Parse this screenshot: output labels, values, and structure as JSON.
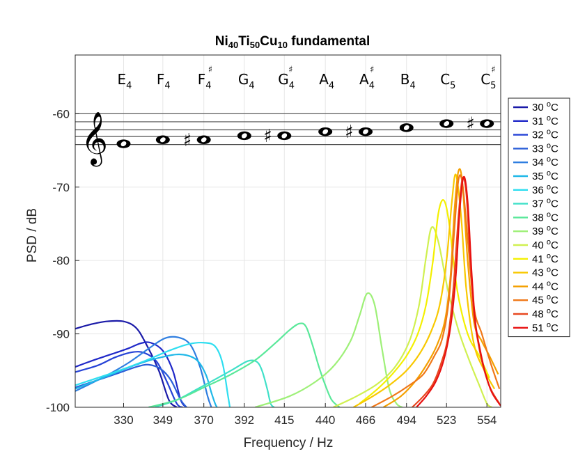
{
  "colors": {
    "grid": "#e6e6e6",
    "axis": "#262626",
    "staff": "#4d4d4d",
    "background": "#ffffff"
  },
  "glyphs": {
    "treble_clef": "𝄞",
    "sharp": "♯",
    "whole_note": "𝅝"
  },
  "chart_data": {
    "type": "line",
    "title": {
      "parts": [
        {
          "text": "Ni",
          "sub": false
        },
        {
          "text": "40",
          "sub": true
        },
        {
          "text": "Ti",
          "sub": false
        },
        {
          "text": "50",
          "sub": true
        },
        {
          "text": "Cu",
          "sub": false
        },
        {
          "text": "10",
          "sub": true
        },
        {
          "text": " fundamental",
          "sub": false
        }
      ]
    },
    "xlabel": "Frequency / Hz",
    "ylabel": "PSD / dB",
    "x_scale": "log",
    "xlim": [
      308,
      565
    ],
    "ylim": [
      -100,
      -52
    ],
    "xticks": [
      330,
      349,
      370,
      392,
      415,
      440,
      466,
      494,
      523,
      554
    ],
    "xtick_labels": [
      "330",
      "349",
      "370",
      "392",
      "415",
      "440",
      "466",
      "494",
      "523",
      "554"
    ],
    "yticks": [
      -100,
      -90,
      -80,
      -70,
      -60
    ],
    "ytick_labels": [
      "-100",
      "-90",
      "-80",
      "-70",
      "-60"
    ],
    "grid": true,
    "legend_position": "outside-right",
    "notes": [
      {
        "name": "E",
        "octave": "4",
        "sharp": false,
        "freq": 330,
        "staff_y": -64.1
      },
      {
        "name": "F",
        "octave": "4",
        "sharp": false,
        "freq": 349,
        "staff_y": -63.55
      },
      {
        "name": "F",
        "octave": "4",
        "sharp": true,
        "freq": 370,
        "staff_y": -63.55
      },
      {
        "name": "G",
        "octave": "4",
        "sharp": false,
        "freq": 392,
        "staff_y": -63.0
      },
      {
        "name": "G",
        "octave": "4",
        "sharp": true,
        "freq": 415,
        "staff_y": -63.0
      },
      {
        "name": "A",
        "octave": "4",
        "sharp": false,
        "freq": 440,
        "staff_y": -62.45
      },
      {
        "name": "A",
        "octave": "4",
        "sharp": true,
        "freq": 466,
        "staff_y": -62.45
      },
      {
        "name": "B",
        "octave": "4",
        "sharp": false,
        "freq": 494,
        "staff_y": -61.9
      },
      {
        "name": "C",
        "octave": "5",
        "sharp": false,
        "freq": 523,
        "staff_y": -61.35
      },
      {
        "name": "C",
        "octave": "5",
        "sharp": true,
        "freq": 554,
        "staff_y": -61.35
      }
    ],
    "staff_lines": [
      -60.0,
      -61.1,
      -62.2,
      -63.1,
      -64.2
    ],
    "series": [
      {
        "name": "30 °C",
        "label": "30 ",
        "color": "#1a1aa8",
        "x": [
          308,
          315,
          322,
          330,
          336,
          341,
          347,
          352,
          356
        ],
        "y": [
          -89.3,
          -88.7,
          -88.3,
          -88.3,
          -89.2,
          -91.5,
          -95.0,
          -99.0,
          -100
        ]
      },
      {
        "name": "31 °C",
        "label": "31 ",
        "color": "#1f28c8",
        "x": [
          308,
          316,
          324,
          332,
          338,
          343,
          349,
          354,
          358,
          361
        ],
        "y": [
          -94.5,
          -93.6,
          -92.8,
          -92.0,
          -91.3,
          -91.2,
          -92.3,
          -95.0,
          -99.0,
          -100
        ]
      },
      {
        "name": "32 °C",
        "label": "32 ",
        "color": "#2441d6",
        "x": [
          308,
          318,
          326,
          334,
          340,
          346,
          351,
          356,
          359
        ],
        "y": [
          -95.2,
          -94.3,
          -93.2,
          -92.5,
          -92.6,
          -93.8,
          -96.5,
          -99.5,
          -100
        ]
      },
      {
        "name": "33 °C",
        "label": "33 ",
        "color": "#2a5ed8",
        "x": [
          308,
          318,
          328,
          336,
          342,
          348,
          353,
          358,
          361
        ],
        "y": [
          -97.3,
          -96.3,
          -95.3,
          -94.5,
          -94.2,
          -94.8,
          -96.3,
          -99.0,
          -100
        ]
      },
      {
        "name": "34 °C",
        "label": "34 ",
        "color": "#2f7ee0",
        "x": [
          308,
          320,
          332,
          342,
          350,
          357,
          363,
          368,
          372,
          374
        ],
        "y": [
          -97.8,
          -96.0,
          -94.0,
          -92.0,
          -90.6,
          -90.5,
          -91.5,
          -94.5,
          -98.5,
          -100
        ]
      },
      {
        "name": "35 °C",
        "label": "35 ",
        "color": "#1fb8e8",
        "x": [
          308,
          322,
          336,
          348,
          358,
          366,
          371,
          374,
          376,
          377
        ],
        "y": [
          -97.5,
          -95.8,
          -94.2,
          -93.2,
          -92.8,
          -93.5,
          -95.5,
          -98.0,
          -99.5,
          -100
        ]
      },
      {
        "name": "36 °C",
        "label": "36 ",
        "color": "#2edef0",
        "x": [
          308,
          325,
          340,
          352,
          362,
          370,
          376,
          380,
          383,
          384
        ],
        "y": [
          -97.0,
          -95.3,
          -93.7,
          -92.3,
          -91.4,
          -91.2,
          -91.7,
          -94.0,
          -98.5,
          -100
        ]
      },
      {
        "name": "37 °C",
        "label": "37 ",
        "color": "#3fe0c8",
        "x": [
          345,
          356,
          366,
          376,
          386,
          394,
          399,
          402,
          405,
          407,
          409
        ],
        "y": [
          -100,
          -99.0,
          -97.6,
          -96.2,
          -94.8,
          -93.7,
          -93.8,
          -95.0,
          -97.5,
          -99.5,
          -100
        ]
      },
      {
        "name": "38 °C",
        "label": "38 ",
        "color": "#5ae89a",
        "x": [
          342,
          356,
          370,
          384,
          398,
          410,
          418,
          424,
          428,
          432,
          436,
          440,
          444,
          449
        ],
        "y": [
          -100,
          -99.0,
          -97.3,
          -95.6,
          -93.6,
          -91.2,
          -89.5,
          -88.6,
          -89.0,
          -91.5,
          -94.5,
          -97.0,
          -99.0,
          -100
        ]
      },
      {
        "name": "39 °C",
        "label": "39 ",
        "color": "#9ef078",
        "x": [
          398,
          418,
          434,
          446,
          456,
          462,
          467,
          472,
          477,
          482,
          487,
          491
        ],
        "y": [
          -100,
          -98.5,
          -96.5,
          -94.2,
          -91.0,
          -87.5,
          -84.5,
          -86.0,
          -92.0,
          -97.5,
          -99.5,
          -100
        ]
      },
      {
        "name": "40 °C",
        "label": "40 ",
        "color": "#d0f050",
        "x": [
          445,
          460,
          474,
          486,
          496,
          503,
          508,
          512,
          517,
          524,
          532,
          540,
          548,
          554,
          558
        ],
        "y": [
          -100,
          -98.5,
          -96.8,
          -94.5,
          -91.0,
          -86.0,
          -79.5,
          -75.5,
          -77.5,
          -84.0,
          -89.5,
          -93.5,
          -97.0,
          -99.5,
          -100
        ]
      },
      {
        "name": "41 °C",
        "label": "41 ",
        "color": "#f4f000",
        "x": [
          462,
          474,
          484,
          494,
          502,
          508,
          513,
          517,
          521,
          525,
          531,
          539,
          548,
          556
        ],
        "y": [
          -99.5,
          -97.5,
          -95.5,
          -93.0,
          -90.0,
          -86.0,
          -80.0,
          -73.5,
          -71.8,
          -75.0,
          -84.0,
          -90.0,
          -93.0,
          -96.0
        ]
      },
      {
        "name": "43 °C",
        "label": "43 ",
        "color": "#f8c800",
        "x": [
          458,
          470,
          482,
          494,
          504,
          512,
          518,
          523,
          527,
          530,
          534,
          538,
          544,
          552,
          560
        ],
        "y": [
          -100,
          -98.6,
          -97.0,
          -95.0,
          -92.5,
          -89.5,
          -86.0,
          -80.0,
          -72.0,
          -68.3,
          -74.0,
          -84.0,
          -91.5,
          -95.0,
          -97.5
        ]
      },
      {
        "name": "44 °C",
        "label": "44 ",
        "color": "#f4a000",
        "x": [
          478,
          490,
          500,
          509,
          516,
          522,
          526,
          529,
          532,
          535,
          539,
          544,
          550,
          556,
          563
        ],
        "y": [
          -100,
          -98.5,
          -96.5,
          -94.0,
          -91.5,
          -88.0,
          -82.0,
          -73.0,
          -67.8,
          -69.5,
          -80.0,
          -88.5,
          -91.0,
          -93.0,
          -95.5
        ]
      },
      {
        "name": "45 °C",
        "label": "45 ",
        "color": "#f07818",
        "x": [
          470,
          484,
          496,
          506,
          514,
          520,
          525,
          529,
          532,
          535,
          539,
          544,
          550,
          557,
          564
        ],
        "y": [
          -100,
          -98.5,
          -97.0,
          -95.5,
          -93.0,
          -90.5,
          -85.0,
          -75.5,
          -69.0,
          -69.5,
          -77.0,
          -86.5,
          -90.0,
          -94.0,
          -97.5
        ]
      },
      {
        "name": "48 °C",
        "label": "48 ",
        "color": "#e84820",
        "x": [
          498,
          506,
          513,
          519,
          524,
          528,
          532,
          535,
          538,
          541,
          544,
          548,
          552,
          557,
          564
        ],
        "y": [
          -100,
          -98.5,
          -96.8,
          -94.0,
          -90.5,
          -84.0,
          -74.0,
          -68.8,
          -71.0,
          -80.0,
          -87.5,
          -92.0,
          -95.0,
          -97.5,
          -99.5
        ]
      },
      {
        "name": "51 °C",
        "label": "51 ",
        "color": "#e81010",
        "x": [
          501,
          508,
          515,
          521,
          526,
          530,
          533,
          536,
          539,
          542,
          545,
          549,
          553,
          558,
          565
        ],
        "y": [
          -100,
          -98.5,
          -96.5,
          -93.5,
          -89.0,
          -82.0,
          -73.0,
          -68.6,
          -72.0,
          -81.5,
          -88.5,
          -92.5,
          -95.5,
          -98.0,
          -99.8
        ]
      }
    ]
  }
}
